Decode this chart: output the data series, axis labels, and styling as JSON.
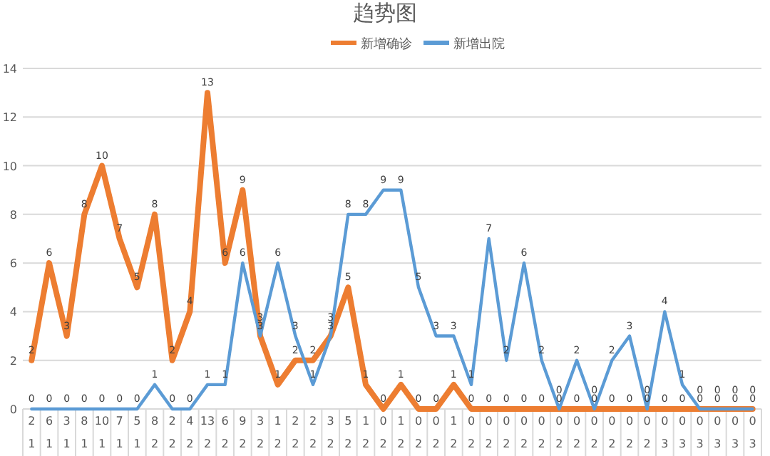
{
  "chart_data": {
    "type": "line",
    "title": "趋势图",
    "categories": [
      "2\n1",
      "6\n1",
      "3\n1",
      "8\n1",
      "10\n1",
      "7\n1",
      "5\n1",
      "8\n2",
      "2\n2",
      "4\n2",
      "13\n2",
      "6\n2",
      "9\n2",
      "3\n2",
      "1\n2",
      "2\n2",
      "2\n2",
      "3\n2",
      "5\n2",
      "1\n2",
      "0\n2",
      "1\n2",
      "0\n2",
      "0\n2",
      "1\n2",
      "0\n2",
      "0\n2",
      "0\n2",
      "0\n2",
      "0\n2",
      "0\n2",
      "0\n2",
      "0\n2",
      "0\n2",
      "0\n2",
      "0\n2",
      "0\n3",
      "0\n3",
      "0\n3",
      "0\n3",
      "0\n3",
      "0\n3"
    ],
    "series": [
      {
        "name": "新增确诊",
        "color": "#ed7d31",
        "values": [
          2,
          6,
          3,
          8,
          10,
          7,
          5,
          8,
          2,
          4,
          13,
          6,
          9,
          3,
          1,
          2,
          2,
          3,
          5,
          1,
          0,
          1,
          0,
          0,
          1,
          0,
          0,
          0,
          0,
          0,
          0,
          0,
          0,
          0,
          0,
          0,
          0,
          0,
          0,
          0,
          0,
          0
        ]
      },
      {
        "name": "新增出院",
        "color": "#5b9bd5",
        "values": [
          0,
          0,
          0,
          0,
          0,
          0,
          0,
          1,
          0,
          0,
          1,
          1,
          6,
          3,
          6,
          3,
          1,
          3,
          8,
          8,
          9,
          9,
          5,
          3,
          3,
          1,
          7,
          2,
          6,
          2,
          0,
          2,
          0,
          2,
          3,
          0,
          4,
          1,
          0,
          0,
          0,
          0
        ]
      }
    ],
    "ylim": [
      0,
      14
    ],
    "yticks": [
      0,
      2,
      4,
      6,
      8,
      10,
      12,
      14
    ],
    "grid": "y",
    "legend": "top",
    "marker": "none",
    "line_style": "solid",
    "data_labels": true
  }
}
